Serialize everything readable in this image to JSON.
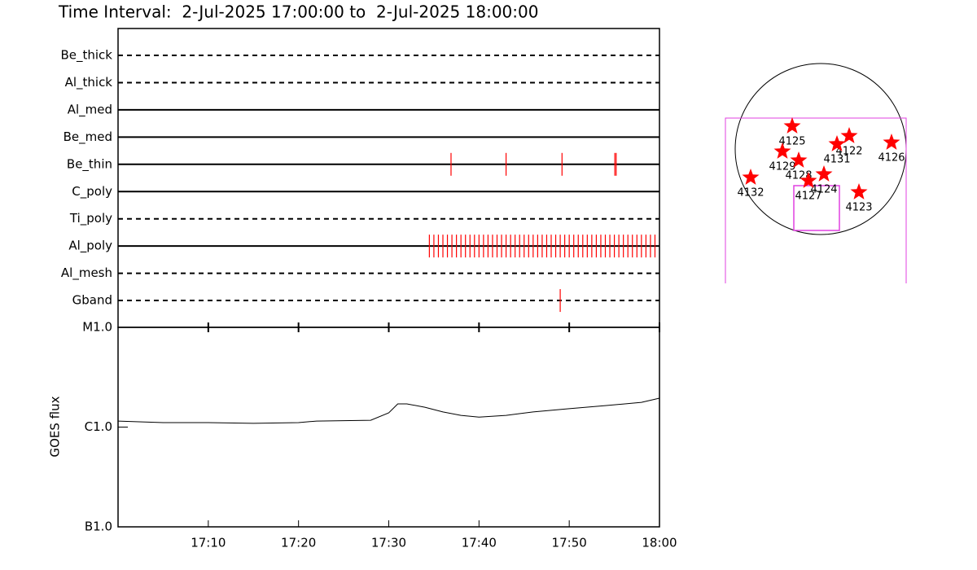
{
  "chart_data": [
    {
      "type": "event",
      "title": "Time Interval:  2-Jul-2025 17:00:00 to  2-Jul-2025 18:00:00",
      "color": "#ff0000",
      "xlim": [
        1020,
        1080
      ],
      "series": [
        {
          "name": "Be_thick",
          "style": "dashed",
          "values": []
        },
        {
          "name": "Al_thick",
          "style": "dashed",
          "values": []
        },
        {
          "name": "Al_med",
          "style": "solid",
          "values": []
        },
        {
          "name": "Be_med",
          "style": "solid",
          "values": []
        },
        {
          "name": "Be_thin",
          "style": "solid",
          "values": [
            1056.9,
            1063.0,
            1069.2,
            1075.05,
            1075.2
          ]
        },
        {
          "name": "C_poly",
          "style": "solid",
          "values": []
        },
        {
          "name": "Ti_poly",
          "style": "dashed",
          "values": []
        },
        {
          "name": "Al_poly",
          "style": "solid",
          "values": [
            1054.5,
            1055,
            1055.5,
            1056,
            1056.5,
            1057,
            1057.5,
            1058,
            1058.5,
            1059,
            1059.5,
            1060,
            1060.5,
            1061,
            1061.5,
            1062,
            1062.5,
            1063,
            1063.5,
            1064,
            1064.5,
            1065,
            1065.5,
            1066,
            1066.5,
            1067,
            1067.5,
            1068,
            1068.5,
            1069,
            1069.5,
            1070,
            1070.5,
            1071,
            1071.5,
            1072,
            1072.5,
            1073,
            1073.5,
            1074,
            1074.5,
            1075,
            1075.5,
            1076,
            1076.5,
            1077,
            1077.5,
            1078,
            1078.5,
            1079,
            1079.5
          ]
        },
        {
          "name": "Al_mesh",
          "style": "dashed",
          "values": []
        },
        {
          "name": "Gband",
          "style": "dashed",
          "values": [
            1069.0
          ]
        }
      ]
    },
    {
      "type": "line",
      "y_label": "GOES flux",
      "log_scale": true,
      "color": "#000000",
      "xlim": [
        1020,
        1080
      ],
      "xticks": [
        {
          "value": 1030,
          "label": "17:10"
        },
        {
          "value": 1040,
          "label": "17:20"
        },
        {
          "value": 1050,
          "label": "17:30"
        },
        {
          "value": 1060,
          "label": "17:40"
        },
        {
          "value": 1070,
          "label": "17:50"
        },
        {
          "value": 1080,
          "label": "18:00"
        }
      ],
      "ylim": [
        1e-07,
        1e-05
      ],
      "yticks": [
        {
          "value": 1e-07,
          "label": "B1.0"
        },
        {
          "value": 1e-06,
          "label": "C1.0"
        },
        {
          "value": 1e-05,
          "label": "M1.0"
        }
      ],
      "x": [
        1020,
        1025,
        1030,
        1035,
        1040,
        1042,
        1048,
        1050,
        1051,
        1052,
        1054,
        1056,
        1058,
        1060,
        1063,
        1066,
        1070,
        1074,
        1078,
        1080
      ],
      "values": [
        1.15e-06,
        1.11e-06,
        1.11e-06,
        1.09e-06,
        1.11e-06,
        1.15e-06,
        1.17e-06,
        1.39e-06,
        1.71e-06,
        1.71e-06,
        1.58e-06,
        1.42e-06,
        1.31e-06,
        1.26e-06,
        1.31e-06,
        1.42e-06,
        1.53e-06,
        1.64e-06,
        1.77e-06,
        1.95e-06
      ]
    }
  ],
  "map": {
    "labels": [
      "4125",
      "4122",
      "4131",
      "4126",
      "4129",
      "4128",
      "4124",
      "4127",
      "4132",
      "4123"
    ]
  }
}
